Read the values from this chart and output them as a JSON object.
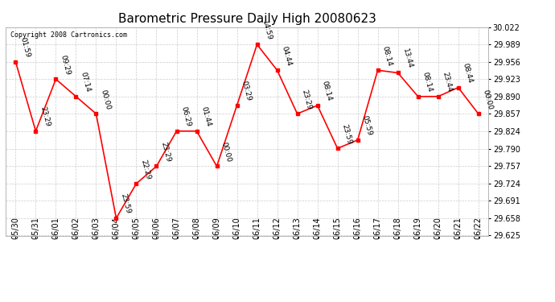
{
  "title": "Barometric Pressure Daily High 20080623",
  "copyright": "Copyright 2008 Cartronics.com",
  "x_labels": [
    "05/30",
    "05/31",
    "06/01",
    "06/02",
    "06/03",
    "06/04",
    "06/05",
    "06/06",
    "06/07",
    "06/08",
    "06/09",
    "06/10",
    "06/11",
    "06/12",
    "06/13",
    "06/14",
    "06/15",
    "06/16",
    "06/17",
    "06/18",
    "06/19",
    "06/20",
    "06/21",
    "06/22"
  ],
  "y_values": [
    29.956,
    29.824,
    29.923,
    29.89,
    29.857,
    29.658,
    29.724,
    29.757,
    29.824,
    29.824,
    29.757,
    29.873,
    29.989,
    29.94,
    29.857,
    29.873,
    29.791,
    29.807,
    29.94,
    29.935,
    29.89,
    29.89,
    29.907,
    29.857
  ],
  "point_labels": [
    "01:59",
    "23:29",
    "09:29",
    "07:14",
    "00:00",
    "23:59",
    "22:29",
    "23:29",
    "06:29",
    "01:44",
    "00:00",
    "03:29",
    "14:59",
    "04:44",
    "23:29",
    "08:14",
    "23:59",
    "05:59",
    "08:14",
    "13:44",
    "08:14",
    "23:44",
    "08:44",
    "00:00"
  ],
  "ylim_min": 29.625,
  "ylim_max": 30.022,
  "yticks": [
    29.625,
    29.658,
    29.691,
    29.724,
    29.757,
    29.79,
    29.824,
    29.857,
    29.89,
    29.923,
    29.956,
    29.989,
    30.022
  ],
  "line_color": "red",
  "marker_color": "red",
  "background_color": "#ffffff",
  "grid_color": "#cccccc",
  "title_fontsize": 11,
  "label_fontsize": 7,
  "point_label_fontsize": 6.5,
  "copyright_fontsize": 6
}
